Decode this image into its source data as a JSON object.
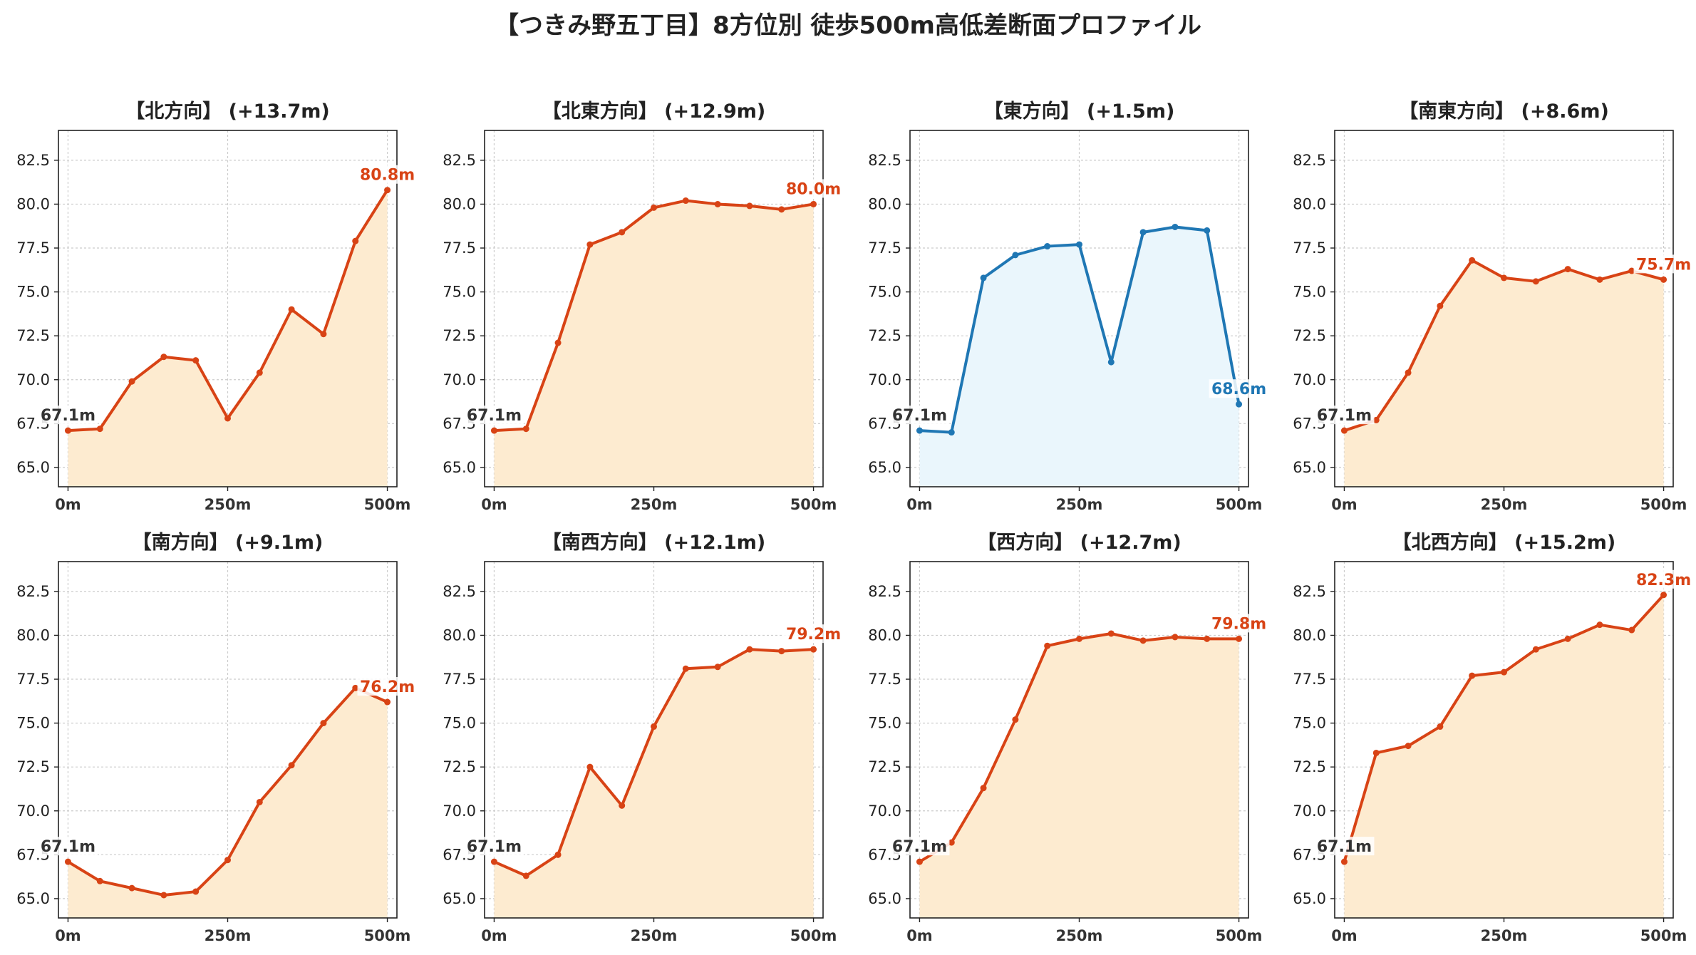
{
  "title": "【つきみ野五丁目】8方位別 徒歩500m高低差断面プロファイル",
  "colors": {
    "up_line": "#d84315",
    "up_fill": "#fdebd0",
    "flat_line": "#1f77b4",
    "flat_fill": "#eaf6fc",
    "start_label": "#333333",
    "grid": "#cccccc"
  },
  "chart_data": [
    {
      "type": "line",
      "title": "【北方向】 (+13.7m)",
      "x": [
        0,
        50,
        100,
        150,
        200,
        250,
        300,
        350,
        400,
        450,
        500
      ],
      "y": [
        67.1,
        67.2,
        69.9,
        71.3,
        71.1,
        67.8,
        70.4,
        74.0,
        72.6,
        77.9,
        80.8
      ],
      "xticks": [
        0,
        250,
        500
      ],
      "xtick_labels": [
        "0m",
        "250m",
        "500m"
      ],
      "yticks": [
        65.0,
        67.5,
        70.0,
        72.5,
        75.0,
        77.5,
        80.0,
        82.5
      ],
      "ytick_labels": [
        "65.0",
        "67.5",
        "70.0",
        "72.5",
        "75.0",
        "77.5",
        "80.0",
        "82.5"
      ],
      "xlim": [
        -15,
        515
      ],
      "ylim": [
        63.9,
        84.2
      ],
      "start_label": "67.1m",
      "end_label": "80.8m",
      "style": "up",
      "grid": true
    },
    {
      "type": "line",
      "title": "【北東方向】 (+12.9m)",
      "x": [
        0,
        50,
        100,
        150,
        200,
        250,
        300,
        350,
        400,
        450,
        500
      ],
      "y": [
        67.1,
        67.2,
        72.1,
        77.7,
        78.4,
        79.8,
        80.2,
        80.0,
        79.9,
        79.7,
        80.0
      ],
      "xticks": [
        0,
        250,
        500
      ],
      "xtick_labels": [
        "0m",
        "250m",
        "500m"
      ],
      "yticks": [
        65.0,
        67.5,
        70.0,
        72.5,
        75.0,
        77.5,
        80.0,
        82.5
      ],
      "ytick_labels": [
        "65.0",
        "67.5",
        "70.0",
        "72.5",
        "75.0",
        "77.5",
        "80.0",
        "82.5"
      ],
      "xlim": [
        -15,
        515
      ],
      "ylim": [
        63.9,
        84.2
      ],
      "start_label": "67.1m",
      "end_label": "80.0m",
      "style": "up",
      "grid": true
    },
    {
      "type": "line",
      "title": "【東方向】 (+1.5m)",
      "x": [
        0,
        50,
        100,
        150,
        200,
        250,
        300,
        350,
        400,
        450,
        500
      ],
      "y": [
        67.1,
        67.0,
        75.8,
        77.1,
        77.6,
        77.7,
        71.0,
        78.4,
        78.7,
        78.5,
        68.6
      ],
      "xticks": [
        0,
        250,
        500
      ],
      "xtick_labels": [
        "0m",
        "250m",
        "500m"
      ],
      "yticks": [
        65.0,
        67.5,
        70.0,
        72.5,
        75.0,
        77.5,
        80.0,
        82.5
      ],
      "ytick_labels": [
        "65.0",
        "67.5",
        "70.0",
        "72.5",
        "75.0",
        "77.5",
        "80.0",
        "82.5"
      ],
      "xlim": [
        -15,
        515
      ],
      "ylim": [
        63.9,
        84.2
      ],
      "start_label": "67.1m",
      "end_label": "68.6m",
      "style": "flat",
      "grid": true
    },
    {
      "type": "line",
      "title": "【南東方向】 (+8.6m)",
      "x": [
        0,
        50,
        100,
        150,
        200,
        250,
        300,
        350,
        400,
        450,
        500
      ],
      "y": [
        67.1,
        67.7,
        70.4,
        74.2,
        76.8,
        75.8,
        75.6,
        76.3,
        75.7,
        76.2,
        75.7
      ],
      "xticks": [
        0,
        250,
        500
      ],
      "xtick_labels": [
        "0m",
        "250m",
        "500m"
      ],
      "yticks": [
        65.0,
        67.5,
        70.0,
        72.5,
        75.0,
        77.5,
        80.0,
        82.5
      ],
      "ytick_labels": [
        "65.0",
        "67.5",
        "70.0",
        "72.5",
        "75.0",
        "77.5",
        "80.0",
        "82.5"
      ],
      "xlim": [
        -15,
        515
      ],
      "ylim": [
        63.9,
        84.2
      ],
      "start_label": "67.1m",
      "end_label": "75.7m",
      "style": "up",
      "grid": true
    },
    {
      "type": "line",
      "title": "【南方向】 (+9.1m)",
      "x": [
        0,
        50,
        100,
        150,
        200,
        250,
        300,
        350,
        400,
        450,
        500
      ],
      "y": [
        67.1,
        66.0,
        65.6,
        65.2,
        65.4,
        67.2,
        70.5,
        72.6,
        75.0,
        77.0,
        76.2
      ],
      "xticks": [
        0,
        250,
        500
      ],
      "xtick_labels": [
        "0m",
        "250m",
        "500m"
      ],
      "yticks": [
        65.0,
        67.5,
        70.0,
        72.5,
        75.0,
        77.5,
        80.0,
        82.5
      ],
      "ytick_labels": [
        "65.0",
        "67.5",
        "70.0",
        "72.5",
        "75.0",
        "77.5",
        "80.0",
        "82.5"
      ],
      "xlim": [
        -15,
        515
      ],
      "ylim": [
        63.9,
        84.2
      ],
      "start_label": "67.1m",
      "end_label": "76.2m",
      "style": "up",
      "grid": true
    },
    {
      "type": "line",
      "title": "【南西方向】 (+12.1m)",
      "x": [
        0,
        50,
        100,
        150,
        200,
        250,
        300,
        350,
        400,
        450,
        500
      ],
      "y": [
        67.1,
        66.3,
        67.5,
        72.5,
        70.3,
        74.8,
        78.1,
        78.2,
        79.2,
        79.1,
        79.2
      ],
      "xticks": [
        0,
        250,
        500
      ],
      "xtick_labels": [
        "0m",
        "250m",
        "500m"
      ],
      "yticks": [
        65.0,
        67.5,
        70.0,
        72.5,
        75.0,
        77.5,
        80.0,
        82.5
      ],
      "ytick_labels": [
        "65.0",
        "67.5",
        "70.0",
        "72.5",
        "75.0",
        "77.5",
        "80.0",
        "82.5"
      ],
      "xlim": [
        -15,
        515
      ],
      "ylim": [
        63.9,
        84.2
      ],
      "start_label": "67.1m",
      "end_label": "79.2m",
      "style": "up",
      "grid": true
    },
    {
      "type": "line",
      "title": "【西方向】 (+12.7m)",
      "x": [
        0,
        50,
        100,
        150,
        200,
        250,
        300,
        350,
        400,
        450,
        500
      ],
      "y": [
        67.1,
        68.2,
        71.3,
        75.2,
        79.4,
        79.8,
        80.1,
        79.7,
        79.9,
        79.8,
        79.8
      ],
      "xticks": [
        0,
        250,
        500
      ],
      "xtick_labels": [
        "0m",
        "250m",
        "500m"
      ],
      "yticks": [
        65.0,
        67.5,
        70.0,
        72.5,
        75.0,
        77.5,
        80.0,
        82.5
      ],
      "ytick_labels": [
        "65.0",
        "67.5",
        "70.0",
        "72.5",
        "75.0",
        "77.5",
        "80.0",
        "82.5"
      ],
      "xlim": [
        -15,
        515
      ],
      "ylim": [
        63.9,
        84.2
      ],
      "start_label": "67.1m",
      "end_label": "79.8m",
      "style": "up",
      "grid": true
    },
    {
      "type": "line",
      "title": "【北西方向】 (+15.2m)",
      "x": [
        0,
        50,
        100,
        150,
        200,
        250,
        300,
        350,
        400,
        450,
        500
      ],
      "y": [
        67.1,
        73.3,
        73.7,
        74.8,
        77.7,
        77.9,
        79.2,
        79.8,
        80.6,
        80.3,
        82.3
      ],
      "xticks": [
        0,
        250,
        500
      ],
      "xtick_labels": [
        "0m",
        "250m",
        "500m"
      ],
      "yticks": [
        65.0,
        67.5,
        70.0,
        72.5,
        75.0,
        77.5,
        80.0,
        82.5
      ],
      "ytick_labels": [
        "65.0",
        "67.5",
        "70.0",
        "72.5",
        "75.0",
        "77.5",
        "80.0",
        "82.5"
      ],
      "xlim": [
        -15,
        515
      ],
      "ylim": [
        63.9,
        84.2
      ],
      "start_label": "67.1m",
      "end_label": "82.3m",
      "style": "up",
      "grid": true
    }
  ]
}
